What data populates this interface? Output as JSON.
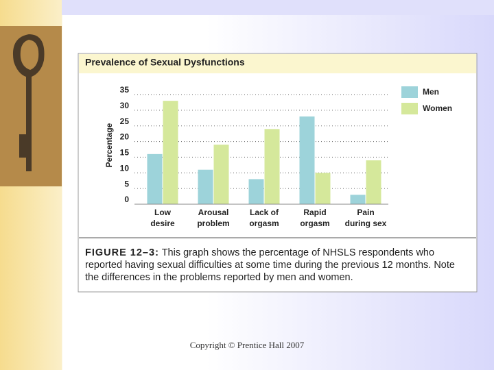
{
  "chart_data": {
    "type": "bar",
    "title": "Prevalence of Sexual Dysfunctions",
    "y_label": "Percentage",
    "categories": [
      "Low\ndesire",
      "Arousal\nproblem",
      "Lack of\norgasm",
      "Rapid\norgasm",
      "Pain\nduring sex"
    ],
    "series": [
      {
        "name": "Men",
        "color": "#9dd3da",
        "values": [
          16,
          11,
          8,
          28,
          3
        ]
      },
      {
        "name": "Women",
        "color": "#d5e89b",
        "values": [
          33,
          19,
          24,
          10,
          14
        ]
      }
    ],
    "ylim": [
      0,
      35
    ],
    "yticks": [
      0,
      5,
      10,
      15,
      20,
      25,
      30,
      35
    ],
    "grid": true,
    "legend": "right"
  },
  "caption": {
    "label": "FIGURE 12–3:",
    "text": "This graph shows the percentage of NHSLS respondents who reported having sexual difficulties at some time during the previous 12 months. Note the differences in the problems reported by men and women."
  },
  "footer": "Copyright © Prentice Hall 2007"
}
